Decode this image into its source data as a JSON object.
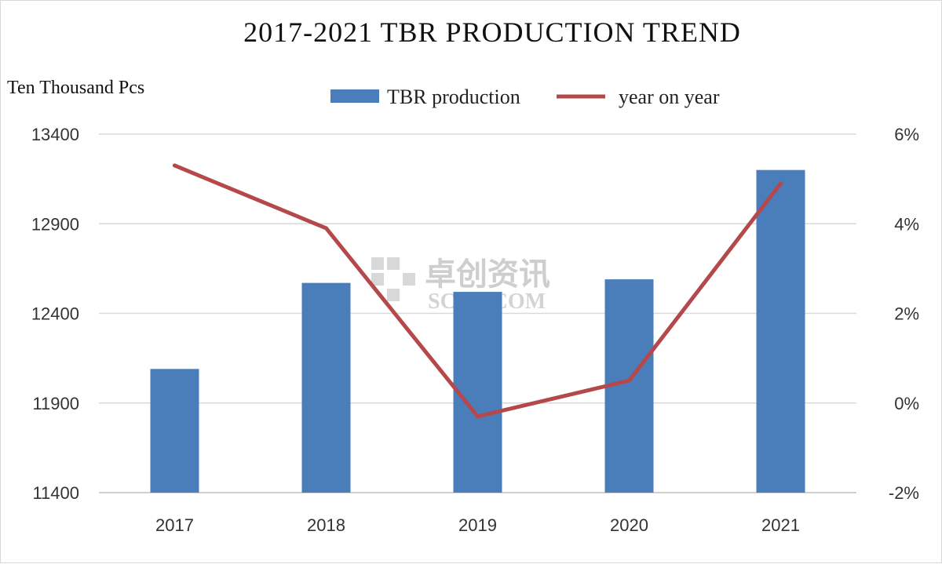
{
  "chart_data": {
    "type": "bar",
    "title": "2017-2021 TBR PRODUCTION TREND",
    "y_unit_label": "Ten Thousand Pcs",
    "categories": [
      "2017",
      "2018",
      "2019",
      "2020",
      "2021"
    ],
    "series": [
      {
        "name": "TBR production",
        "type": "bar",
        "axis": "left",
        "color": "#4a7ebb",
        "values": [
          12090,
          12570,
          12520,
          12590,
          13200
        ]
      },
      {
        "name": "year on year",
        "type": "line",
        "axis": "right",
        "color": "#b5484a",
        "values": [
          5.3,
          3.9,
          -0.3,
          0.5,
          4.9
        ]
      }
    ],
    "y_left": {
      "min": 11400,
      "max": 13400,
      "ticks": [
        "11400",
        "11900",
        "12400",
        "12900",
        "13400"
      ]
    },
    "y_right": {
      "min": -2,
      "max": 6,
      "ticks": [
        "-2%",
        "0%",
        "2%",
        "4%",
        "6%"
      ]
    },
    "grid": true,
    "legend_position": "top"
  },
  "watermark": {
    "line1": "卓创资讯",
    "line2": "SCI99.COM"
  }
}
